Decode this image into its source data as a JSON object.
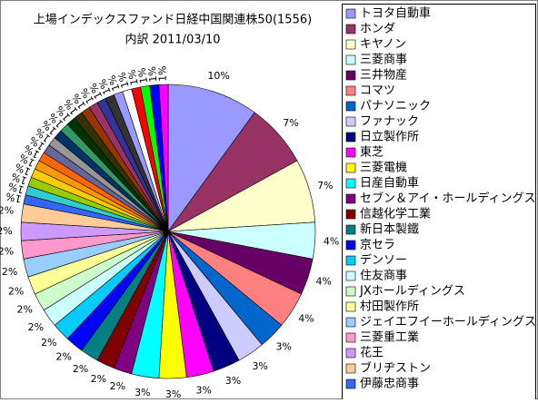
{
  "chart_data": {
    "type": "pie",
    "title": "上場インデックスファンド日経中国関連株50(1556)",
    "subtitle": "内訳 2011/03/10",
    "categories": [
      "トヨタ自動車",
      "ホンダ",
      "キヤノン",
      "三菱商事",
      "三井物産",
      "コマツ",
      "パナソニック",
      "ファナック",
      "日立製作所",
      "東芝",
      "三菱電機",
      "日産自動車",
      "セブン＆アイ・ホールディングス",
      "信越化学工業",
      "新日本製鐵",
      "京セラ",
      "デンソー",
      "住友商事",
      "JXホールディングス",
      "村田製作所",
      "ジェイエフイーホールディングス",
      "三菱重工業",
      "花王",
      "ブリヂストン",
      "伊藤忠商事",
      null,
      null,
      null,
      null,
      null,
      null,
      null,
      null,
      null,
      null,
      null,
      null,
      null,
      null,
      null,
      null,
      null,
      null,
      null,
      null,
      null
    ],
    "values": [
      10,
      7,
      7,
      4,
      4,
      4,
      3,
      3,
      3,
      3,
      3,
      3,
      2,
      2,
      2,
      2,
      2,
      2,
      2,
      2,
      2,
      2,
      2,
      2,
      1,
      1,
      1,
      1,
      1,
      1,
      1,
      1,
      1,
      1,
      1,
      1,
      1,
      1,
      1,
      1,
      1,
      1,
      1,
      1,
      1,
      1
    ],
    "value_labels": [
      "10%",
      "7%",
      "7%",
      "4%",
      "4%",
      "4%",
      "3%",
      "3%",
      "3%",
      "3%",
      "3%",
      "3%",
      "2%",
      "2%",
      "2%",
      "2%",
      "2%",
      "2%",
      "2%",
      "2%",
      "2%",
      "2%",
      "2%",
      "2%",
      "1%",
      "1%",
      "1%",
      "1%",
      "1%",
      "1%",
      "1%",
      "1%",
      "1%",
      "1%",
      "1%",
      "1%",
      "1%",
      "1%",
      "1%",
      "1%",
      "1%",
      "1%",
      "1%",
      "1%",
      "1%",
      "1%"
    ],
    "colors": [
      "#9999FF",
      "#993366",
      "#FFFFCC",
      "#CCFFFF",
      "#660066",
      "#FF8080",
      "#0066CC",
      "#CCCCFF",
      "#000080",
      "#FF00FF",
      "#FFFF00",
      "#00FFFF",
      "#800080",
      "#800000",
      "#008080",
      "#0000FF",
      "#00CCFF",
      "#CCFFFF",
      "#CCFFCC",
      "#FFFF99",
      "#99CCFF",
      "#FF99CC",
      "#CC99FF",
      "#FFCC99",
      "#3366FF",
      "#33CCCC",
      "#99CC00",
      "#FFCC00",
      "#FF9900",
      "#FF6600",
      "#666699",
      "#969696",
      "#003366",
      "#339966",
      "#003300",
      "#333300",
      "#993300",
      "#993366",
      "#333399",
      "#333333",
      "#9999FF",
      "#FFFFFF",
      "#FF0000",
      "#00FF00",
      "#0000FF",
      "#FF00FF"
    ],
    "legend": "right"
  }
}
